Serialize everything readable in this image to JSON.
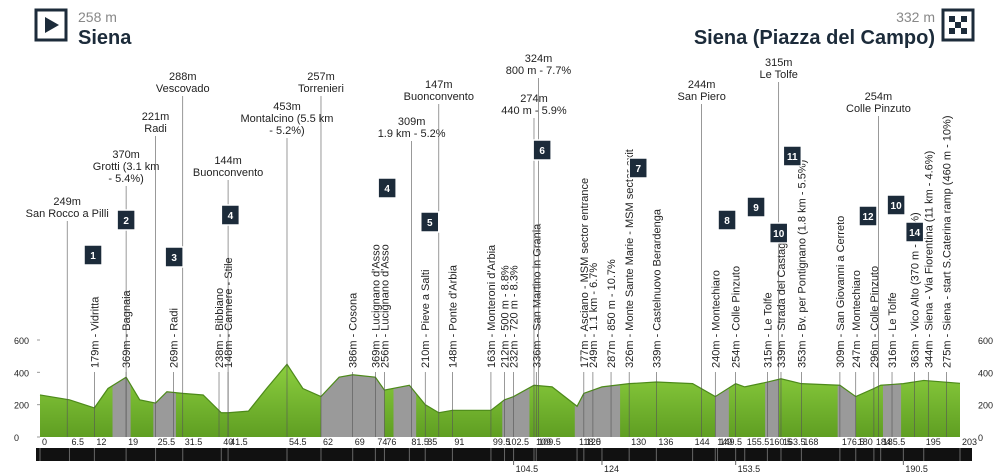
{
  "header": {
    "start_altitude": "258 m",
    "start": "Siena",
    "finish_altitude": "332 m",
    "finish": "Siena (Piazza del Campo)"
  },
  "chart_data": {
    "type": "area",
    "color": "#8ccf3f",
    "sector_color": "#9a9a9a",
    "x": [
      0,
      6.5,
      12,
      15,
      19,
      22,
      25.5,
      28,
      31.5,
      36,
      40,
      41.5,
      46,
      50,
      54.5,
      58,
      62,
      66,
      69,
      74,
      76,
      81.5,
      85,
      88,
      91,
      99.5,
      102.5,
      104.5,
      109,
      113,
      118.5,
      120,
      124,
      130,
      136,
      144,
      149,
      153.5,
      155.5,
      160.5,
      163.5,
      168,
      176.5,
      180,
      184,
      185.5,
      190.5,
      195,
      203
    ],
    "values": [
      260,
      230,
      180,
      300,
      370,
      230,
      210,
      280,
      270,
      260,
      150,
      150,
      160,
      300,
      450,
      300,
      250,
      370,
      385,
      370,
      290,
      320,
      200,
      150,
      165,
      165,
      230,
      250,
      320,
      310,
      190,
      270,
      310,
      330,
      340,
      330,
      250,
      330,
      310,
      340,
      360,
      330,
      320,
      250,
      300,
      320,
      330,
      350,
      332
    ],
    "xlim": [
      0,
      203
    ],
    "ylim": [
      0,
      600
    ],
    "yticks": [
      0,
      200,
      400,
      600
    ],
    "xticks": [
      0,
      6.5,
      12,
      19,
      25.5,
      31.5,
      40,
      41.5,
      54.5,
      62,
      69,
      74,
      76,
      81.5,
      85,
      91,
      99.5,
      102.5,
      109,
      109.5,
      118.5,
      120,
      130,
      136,
      144,
      149,
      149.5,
      155.5,
      160.5,
      163.5,
      168,
      176.5,
      180,
      184,
      185.5,
      195,
      203
    ],
    "xticks_secondary": [
      104.5,
      124,
      153.5,
      190.5
    ],
    "sectors": [
      [
        16,
        20
      ],
      [
        25,
        30
      ],
      [
        62,
        76
      ],
      [
        78,
        83
      ],
      [
        102,
        108
      ],
      [
        118,
        128
      ],
      [
        149,
        152
      ],
      [
        160,
        163
      ],
      [
        176,
        180
      ],
      [
        186,
        190
      ]
    ],
    "badges": [
      {
        "x": 11.7,
        "label": "1"
      },
      {
        "x": 19,
        "label": "2"
      },
      {
        "x": 29.6,
        "label": "3"
      },
      {
        "x": 42,
        "label": "4"
      },
      {
        "x": 76.6,
        "label": "4"
      },
      {
        "x": 86,
        "label": "5"
      },
      {
        "x": 110.8,
        "label": "6"
      },
      {
        "x": 132,
        "label": "7"
      },
      {
        "x": 151.6,
        "label": "8"
      },
      {
        "x": 158,
        "label": "9"
      },
      {
        "x": 163,
        "label": "10"
      },
      {
        "x": 166,
        "label": "11"
      },
      {
        "x": 182.7,
        "label": "12"
      },
      {
        "x": 188.9,
        "label": "10"
      },
      {
        "x": 193,
        "label": "14"
      }
    ],
    "top_labels": [
      {
        "x": 6,
        "lines": [
          "249m",
          "San Rocco a Pilli"
        ]
      },
      {
        "x": 19,
        "lines": [
          "370m",
          "Grotti (3.1 km",
          "- 5.4%)"
        ]
      },
      {
        "x": 25.5,
        "lines": [
          "221m",
          "Radi"
        ]
      },
      {
        "x": 31.5,
        "lines": [
          "288m",
          "Vescovado"
        ]
      },
      {
        "x": 41.5,
        "lines": [
          "144m",
          "Buonconvento"
        ]
      },
      {
        "x": 54.5,
        "lines": [
          "453m",
          "Montalcino (5.5 km",
          "- 5.2%)"
        ]
      },
      {
        "x": 62,
        "lines": [
          "257m",
          "Torrenieri"
        ]
      },
      {
        "x": 82,
        "lines": [
          "309m",
          "1.9 km - 5.2%"
        ]
      },
      {
        "x": 88,
        "lines": [
          "147m",
          "Buonconvento"
        ]
      },
      {
        "x": 110,
        "lines": [
          "324m",
          "800 m - 7.7%"
        ]
      },
      {
        "x": 109,
        "lines": [
          "274m",
          "440 m - 5.9%"
        ]
      },
      {
        "x": 146,
        "lines": [
          "244m",
          "San Piero"
        ]
      },
      {
        "x": 163,
        "lines": [
          "315m",
          "Le Tolfe"
        ]
      },
      {
        "x": 185,
        "lines": [
          "254m",
          "Colle Pinzuto"
        ]
      }
    ],
    "point_labels": [
      {
        "x": 12,
        "text": "179m - Vidritta"
      },
      {
        "x": 19,
        "text": "369m - Bagnaia"
      },
      {
        "x": 29.5,
        "text": "269m - Radi"
      },
      {
        "x": 39.5,
        "text": "238m - Bibbiano"
      },
      {
        "x": 41.5,
        "text": "148m - Cannere - Stile"
      },
      {
        "x": 69,
        "text": "386m - Cosona"
      },
      {
        "x": 74,
        "text": "369m - Lucignano d'Asso"
      },
      {
        "x": 76,
        "text": "256m - Lucignano d'Asso"
      },
      {
        "x": 85,
        "text": "210m - Pieve a Salti"
      },
      {
        "x": 91,
        "text": "148m - Ponte d'Arbia"
      },
      {
        "x": 99.5,
        "text": "163m - Monteroni d'Arbia"
      },
      {
        "x": 102.5,
        "text": "212m - 500 m - 8.8%"
      },
      {
        "x": 104.5,
        "text": "232m - 720 m - 8.3%"
      },
      {
        "x": 109.5,
        "text": "336m - San Martino in Grania"
      },
      {
        "x": 120,
        "text": "177m - Asciano - MSM sector entrance"
      },
      {
        "x": 122,
        "text": "249m - 1.1 km - 6.7%"
      },
      {
        "x": 126,
        "text": "287m - 850 m - 10.7%"
      },
      {
        "x": 130,
        "text": "326m - Monte Sante Marie - MSM sector exit"
      },
      {
        "x": 136,
        "text": "339m - Castelnuovo Berardenga"
      },
      {
        "x": 149,
        "text": "240m - Montechiaro"
      },
      {
        "x": 153.5,
        "text": "254m - Colle Pinzuto"
      },
      {
        "x": 160.5,
        "text": "315m - Le Tolfe"
      },
      {
        "x": 163.5,
        "text": "339m - Strada del Castagno"
      },
      {
        "x": 168,
        "text": "353m - Bv. per Pontignano (1.8 km - 5.5%)"
      },
      {
        "x": 176.5,
        "text": "309m - San Giovanni a Cerreto"
      },
      {
        "x": 180,
        "text": "247m - Montechiaro"
      },
      {
        "x": 184,
        "text": "296m - Colle Pinzuto"
      },
      {
        "x": 188,
        "text": "316m - Le Tolfe"
      },
      {
        "x": 193,
        "text": "363m - Vico Alto (370 m - 7.6%)"
      },
      {
        "x": 196,
        "text": "344m - Siena - Via Fiorentina (11 km - 4.6%)"
      },
      {
        "x": 200,
        "text": "275m - Siena - start S.Caterina ramp (460 m - 10%)"
      }
    ]
  }
}
